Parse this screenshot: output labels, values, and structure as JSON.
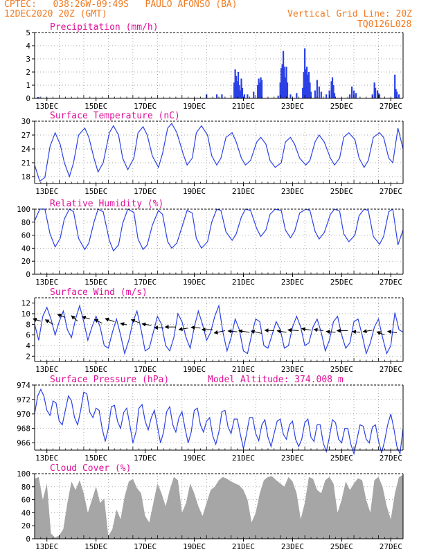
{
  "header": {
    "line1": "CPTEC:   038:26W-09:49S   PAULO AFONSO (BA)",
    "line2": "12DEC2020 20Z (GMT)",
    "vgrid": "Vertical Grid Line: 20Z",
    "code": "TQ0126L028"
  },
  "colors": {
    "header": "#f07b22",
    "title": "#e0109a",
    "series": "#2b41e6",
    "cloud": "#a6a6a6",
    "grid": "#888888"
  },
  "x_axis": {
    "tick_labels": [
      "13DEC",
      "15DEC",
      "17DEC",
      "19DEC",
      "21DEC",
      "23DEC",
      "25DEC",
      "27DEC"
    ],
    "start_hour": 0,
    "end_hour": 360
  },
  "chart_data": [
    {
      "id": "precip",
      "type": "bar",
      "title": "Precipitation (mm/h)",
      "ylim": [
        0,
        5
      ],
      "yticks": [
        0,
        1,
        2,
        3,
        4,
        5
      ],
      "grid": true,
      "unit": "mm/h",
      "points": [
        [
          3,
          0.1
        ],
        [
          4,
          0.1
        ],
        [
          12,
          0.05
        ],
        [
          168,
          0.3
        ],
        [
          178,
          0.3
        ],
        [
          183,
          0.3
        ],
        [
          195,
          1.2
        ],
        [
          196,
          2.2
        ],
        [
          197,
          1.7
        ],
        [
          198,
          1.3
        ],
        [
          199,
          2.0
        ],
        [
          200,
          1.0
        ],
        [
          201,
          0.6
        ],
        [
          202,
          1.5
        ],
        [
          203,
          0.8
        ],
        [
          205,
          0.3
        ],
        [
          208,
          0.3
        ],
        [
          214,
          0.5
        ],
        [
          218,
          1.0
        ],
        [
          219,
          1.5
        ],
        [
          220,
          1.2
        ],
        [
          221,
          1.6
        ],
        [
          222,
          1.4
        ],
        [
          238,
          0.2
        ],
        [
          240,
          1.2
        ],
        [
          241,
          2.3
        ],
        [
          242,
          2.6
        ],
        [
          243,
          3.6
        ],
        [
          244,
          2.4
        ],
        [
          245,
          1.6
        ],
        [
          246,
          2.4
        ],
        [
          247,
          1.2
        ],
        [
          250,
          0.3
        ],
        [
          256,
          0.4
        ],
        [
          262,
          0.8
        ],
        [
          263,
          2.0
        ],
        [
          264,
          3.8
        ],
        [
          265,
          2.2
        ],
        [
          266,
          2.4
        ],
        [
          267,
          1.8
        ],
        [
          268,
          2.0
        ],
        [
          269,
          1.2
        ],
        [
          270,
          0.5
        ],
        [
          274,
          0.6
        ],
        [
          276,
          1.4
        ],
        [
          278,
          0.9
        ],
        [
          280,
          0.5
        ],
        [
          285,
          0.3
        ],
        [
          288,
          0.6
        ],
        [
          290,
          1.3
        ],
        [
          291,
          1.6
        ],
        [
          292,
          1.0
        ],
        [
          293,
          0.4
        ],
        [
          308,
          0.3
        ],
        [
          310,
          0.9
        ],
        [
          312,
          0.6
        ],
        [
          314,
          0.4
        ],
        [
          330,
          0.3
        ],
        [
          332,
          1.2
        ],
        [
          333,
          0.8
        ],
        [
          335,
          0.6
        ],
        [
          336,
          0.4
        ],
        [
          337,
          0.3
        ],
        [
          352,
          1.8
        ],
        [
          353,
          0.7
        ],
        [
          354,
          0.5
        ],
        [
          356,
          0.3
        ]
      ]
    },
    {
      "id": "temp",
      "type": "line",
      "title": "Surface Temperature (nC)",
      "ylim": [
        16.5,
        30
      ],
      "yticks": [
        18,
        21,
        24,
        27,
        30
      ],
      "grid": true,
      "x": [
        0,
        5,
        10,
        15,
        20,
        25,
        29,
        34,
        38,
        43,
        49,
        53,
        58,
        62,
        67,
        73,
        77,
        82,
        86,
        91,
        97,
        101,
        106,
        110,
        115,
        121,
        125,
        130,
        134,
        139,
        145,
        149,
        154,
        158,
        163,
        169,
        173,
        178,
        182,
        187,
        193,
        197,
        202,
        206,
        211,
        217,
        221,
        226,
        230,
        235,
        241,
        245,
        250,
        254,
        259,
        265,
        269,
        274,
        278,
        283,
        289,
        293,
        298,
        302,
        307,
        313,
        317,
        322,
        326,
        331,
        337,
        341,
        346,
        350,
        355,
        360
      ],
      "values": [
        20.5,
        17.0,
        17.8,
        24.5,
        27.5,
        25.0,
        21.0,
        18.0,
        21.0,
        27.0,
        28.5,
        26.5,
        22.0,
        19.0,
        21.0,
        27.5,
        29.0,
        27.0,
        22.0,
        19.5,
        22.0,
        27.5,
        28.8,
        27.0,
        22.5,
        20.0,
        23.0,
        28.5,
        29.5,
        27.5,
        23.0,
        20.5,
        22.0,
        27.5,
        29.0,
        27.0,
        22.5,
        20.5,
        22.0,
        26.5,
        27.5,
        25.5,
        22.0,
        20.5,
        21.5,
        25.5,
        26.5,
        25.0,
        21.5,
        20.0,
        21.0,
        25.5,
        26.5,
        25.0,
        22.0,
        20.5,
        21.5,
        25.5,
        27.0,
        25.5,
        22.0,
        20.5,
        22.0,
        26.5,
        27.5,
        26.0,
        22.0,
        20.0,
        21.5,
        26.5,
        27.5,
        26.5,
        22.0,
        21.0,
        28.5,
        24.0
      ]
    },
    {
      "id": "rh",
      "type": "line",
      "title": "Relative Humidity (%)",
      "ylim": [
        0,
        100
      ],
      "yticks": [
        0,
        20,
        40,
        60,
        80,
        100
      ],
      "grid": true,
      "x": [
        0,
        5,
        10,
        15,
        20,
        25,
        29,
        34,
        38,
        43,
        49,
        53,
        58,
        62,
        67,
        73,
        77,
        82,
        86,
        91,
        97,
        101,
        106,
        110,
        115,
        121,
        125,
        130,
        134,
        139,
        145,
        149,
        154,
        158,
        163,
        169,
        173,
        178,
        182,
        187,
        193,
        197,
        202,
        206,
        211,
        217,
        221,
        226,
        230,
        235,
        241,
        245,
        250,
        254,
        259,
        265,
        269,
        274,
        278,
        283,
        289,
        293,
        298,
        302,
        307,
        313,
        317,
        322,
        326,
        331,
        337,
        341,
        346,
        350,
        355,
        360
      ],
      "values": [
        82,
        100,
        100,
        62,
        42,
        55,
        85,
        100,
        96,
        55,
        38,
        48,
        80,
        100,
        96,
        52,
        36,
        45,
        78,
        100,
        95,
        54,
        38,
        45,
        75,
        98,
        92,
        50,
        40,
        48,
        78,
        98,
        94,
        55,
        40,
        50,
        80,
        100,
        98,
        65,
        52,
        62,
        88,
        100,
        98,
        70,
        58,
        68,
        92,
        100,
        98,
        68,
        56,
        66,
        94,
        100,
        98,
        66,
        54,
        64,
        92,
        100,
        97,
        62,
        50,
        60,
        90,
        100,
        98,
        58,
        46,
        58,
        96,
        100,
        45,
        68
      ]
    },
    {
      "id": "wind",
      "type": "line",
      "title": "Surface Wind (m/s)",
      "ylim": [
        1,
        13
      ],
      "yticks": [
        2,
        4,
        6,
        8,
        10,
        12
      ],
      "grid": true,
      "x": [
        0,
        4,
        8,
        12,
        16,
        20,
        24,
        28,
        32,
        36,
        40,
        44,
        48,
        52,
        56,
        60,
        64,
        68,
        72,
        76,
        80,
        84,
        88,
        92,
        96,
        100,
        104,
        108,
        112,
        116,
        120,
        124,
        128,
        132,
        136,
        140,
        144,
        148,
        152,
        156,
        160,
        164,
        168,
        172,
        176,
        180,
        184,
        188,
        192,
        196,
        200,
        204,
        208,
        212,
        216,
        220,
        224,
        228,
        232,
        236,
        240,
        244,
        248,
        252,
        256,
        260,
        264,
        268,
        272,
        276,
        280,
        284,
        288,
        292,
        296,
        300,
        304,
        308,
        312,
        316,
        320,
        324,
        328,
        332,
        336,
        340,
        344,
        348,
        352,
        356,
        360
      ],
      "values": [
        8.0,
        5.0,
        9.5,
        11.2,
        9.0,
        6.0,
        8.5,
        10.5,
        7.0,
        5.5,
        9.0,
        11.5,
        8.5,
        5.0,
        7.5,
        9.5,
        7.5,
        4.0,
        3.5,
        6.5,
        9.0,
        6.0,
        2.5,
        5.0,
        8.5,
        10.5,
        7.0,
        3.0,
        3.5,
        6.5,
        9.5,
        8.0,
        4.0,
        3.0,
        5.5,
        10.0,
        8.5,
        5.5,
        3.5,
        7.5,
        10.5,
        8.0,
        5.0,
        6.5,
        9.5,
        11.5,
        6.5,
        3.0,
        5.5,
        9.0,
        7.0,
        3.0,
        2.5,
        6.0,
        9.0,
        8.5,
        4.0,
        3.5,
        6.0,
        8.5,
        7.0,
        3.5,
        4.0,
        7.5,
        9.5,
        7.5,
        4.0,
        4.5,
        7.5,
        9.0,
        6.5,
        3.0,
        5.0,
        8.5,
        9.5,
        6.0,
        3.5,
        4.5,
        8.5,
        9.0,
        6.0,
        2.5,
        4.5,
        7.5,
        9.0,
        5.5,
        2.5,
        4.0,
        10.2,
        7.0,
        6.5
      ],
      "vectors": {
        "x": [
          6,
          18,
          30,
          42,
          54,
          66,
          78,
          90,
          102,
          114,
          126,
          138,
          150,
          162,
          174,
          186,
          198,
          210,
          222,
          234,
          246,
          258,
          270,
          282,
          294,
          306,
          318,
          330,
          342,
          354
        ],
        "y": [
          8.6,
          8.0,
          9.3,
          8.6,
          9.0,
          8.2,
          8.5,
          7.9,
          8.3,
          7.8,
          7.3,
          7.5,
          7.3,
          7.3,
          7.0,
          6.8,
          6.6,
          6.5,
          6.3,
          6.8,
          6.5,
          6.8,
          6.9,
          6.8,
          6.5,
          6.8,
          6.5,
          6.9,
          6.0,
          6.4
        ],
        "u": [
          -5,
          -5,
          -5,
          -4,
          -5,
          -5,
          -6,
          -4,
          -5,
          -6,
          -6,
          -7,
          -6,
          -6,
          -7,
          -7,
          -6,
          -7,
          -7,
          -6,
          -6,
          -7,
          -6,
          -6,
          -6,
          -7,
          -5,
          -6,
          -5,
          -6
        ],
        "v": [
          1.5,
          3.0,
          2.0,
          3.5,
          1.5,
          2.5,
          2.0,
          1.0,
          2.0,
          1.0,
          0.3,
          0.0,
          -1.0,
          0.5,
          0.0,
          -1.5,
          0.5,
          1.0,
          1.5,
          0.3,
          1.0,
          0.5,
          1.0,
          0.8,
          0.5,
          0.0,
          0.5,
          -1.0,
          2.0,
          1.0
        ]
      }
    },
    {
      "id": "pres",
      "type": "line",
      "title": "Surface Pressure (hPa)",
      "note": "Model Altitude: 374.008 m",
      "ylim": [
        965,
        974
      ],
      "yticks": [
        966,
        968,
        970,
        972,
        974
      ],
      "grid": true,
      "x": [
        0,
        3,
        6,
        9,
        12,
        15,
        18,
        21,
        24,
        27,
        30,
        33,
        36,
        39,
        42,
        45,
        48,
        51,
        54,
        57,
        60,
        63,
        66,
        69,
        72,
        75,
        78,
        81,
        84,
        87,
        90,
        93,
        96,
        99,
        102,
        105,
        108,
        111,
        114,
        117,
        120,
        123,
        126,
        129,
        132,
        135,
        138,
        141,
        144,
        147,
        150,
        153,
        156,
        159,
        162,
        165,
        168,
        171,
        174,
        177,
        180,
        183,
        186,
        189,
        192,
        195,
        198,
        201,
        204,
        207,
        210,
        213,
        216,
        219,
        222,
        225,
        228,
        231,
        234,
        237,
        240,
        243,
        246,
        249,
        252,
        255,
        258,
        261,
        264,
        267,
        270,
        273,
        276,
        279,
        282,
        285,
        288,
        291,
        294,
        297,
        300,
        303,
        306,
        309,
        312,
        315,
        318,
        321,
        324,
        327,
        330,
        333,
        336,
        339,
        342,
        345,
        348,
        351,
        354,
        357,
        360
      ],
      "values": [
        970.0,
        972.5,
        973.4,
        972.5,
        970.5,
        969.8,
        971.8,
        971.5,
        969.0,
        968.5,
        970.5,
        972.5,
        971.8,
        969.5,
        968.5,
        970.5,
        973.0,
        972.8,
        970.2,
        969.5,
        970.8,
        970.5,
        968.0,
        966.2,
        968.0,
        971.0,
        971.2,
        969.0,
        968.0,
        970.2,
        970.8,
        968.5,
        966.0,
        967.5,
        970.8,
        971.3,
        969.0,
        967.8,
        969.5,
        970.5,
        968.3,
        966.0,
        967.5,
        970.3,
        971.0,
        968.5,
        967.5,
        969.5,
        970.3,
        968.0,
        966.0,
        967.5,
        970.5,
        970.8,
        968.5,
        967.5,
        969.0,
        969.5,
        967.0,
        965.8,
        967.5,
        970.3,
        970.5,
        968.2,
        967.3,
        969.3,
        969.3,
        967.2,
        965.2,
        967.2,
        969.5,
        969.5,
        967.3,
        966.3,
        968.5,
        969.2,
        966.8,
        965.5,
        967.3,
        969.0,
        969.3,
        967.2,
        966.5,
        968.5,
        969.0,
        966.5,
        965.5,
        966.5,
        968.8,
        969.3,
        966.8,
        966.2,
        968.5,
        968.5,
        966.0,
        964.8,
        966.8,
        969.2,
        968.8,
        966.5,
        966.0,
        968.0,
        968.0,
        965.8,
        964.5,
        966.5,
        968.5,
        968.3,
        966.5,
        966.0,
        968.2,
        968.5,
        966.3,
        964.6,
        966.3,
        968.5,
        970.0,
        968.0,
        965.5,
        964.5,
        968.0
      ]
    },
    {
      "id": "cloud",
      "type": "area",
      "title": "Cloud Cover (%)",
      "ylim": [
        0,
        100
      ],
      "yticks": [
        0,
        20,
        40,
        60,
        80,
        100
      ],
      "grid": true,
      "x": [
        0,
        4,
        8,
        12,
        16,
        20,
        24,
        28,
        32,
        36,
        40,
        44,
        48,
        52,
        56,
        60,
        64,
        68,
        72,
        76,
        80,
        84,
        88,
        92,
        96,
        100,
        104,
        108,
        112,
        116,
        120,
        124,
        128,
        132,
        136,
        140,
        144,
        148,
        152,
        156,
        160,
        164,
        168,
        172,
        176,
        180,
        184,
        188,
        192,
        196,
        200,
        204,
        208,
        212,
        216,
        220,
        224,
        228,
        232,
        236,
        240,
        244,
        248,
        252,
        256,
        260,
        264,
        268,
        272,
        276,
        280,
        284,
        288,
        292,
        296,
        300,
        304,
        308,
        312,
        316,
        320,
        324,
        328,
        332,
        336,
        340,
        344,
        348,
        352,
        356,
        360
      ],
      "values": [
        92,
        95,
        60,
        85,
        8,
        2,
        5,
        15,
        55,
        88,
        75,
        90,
        70,
        40,
        60,
        80,
        55,
        62,
        4,
        15,
        45,
        30,
        65,
        88,
        92,
        78,
        70,
        35,
        25,
        55,
        85,
        70,
        50,
        75,
        95,
        90,
        40,
        55,
        85,
        70,
        50,
        35,
        55,
        75,
        80,
        90,
        95,
        92,
        88,
        85,
        82,
        75,
        60,
        25,
        40,
        70,
        90,
        95,
        96,
        90,
        85,
        80,
        95,
        88,
        70,
        30,
        55,
        95,
        92,
        75,
        70,
        90,
        95,
        85,
        40,
        60,
        88,
        75,
        85,
        93,
        90,
        60,
        40,
        90,
        95,
        80,
        50,
        30,
        70,
        95,
        98
      ]
    }
  ]
}
